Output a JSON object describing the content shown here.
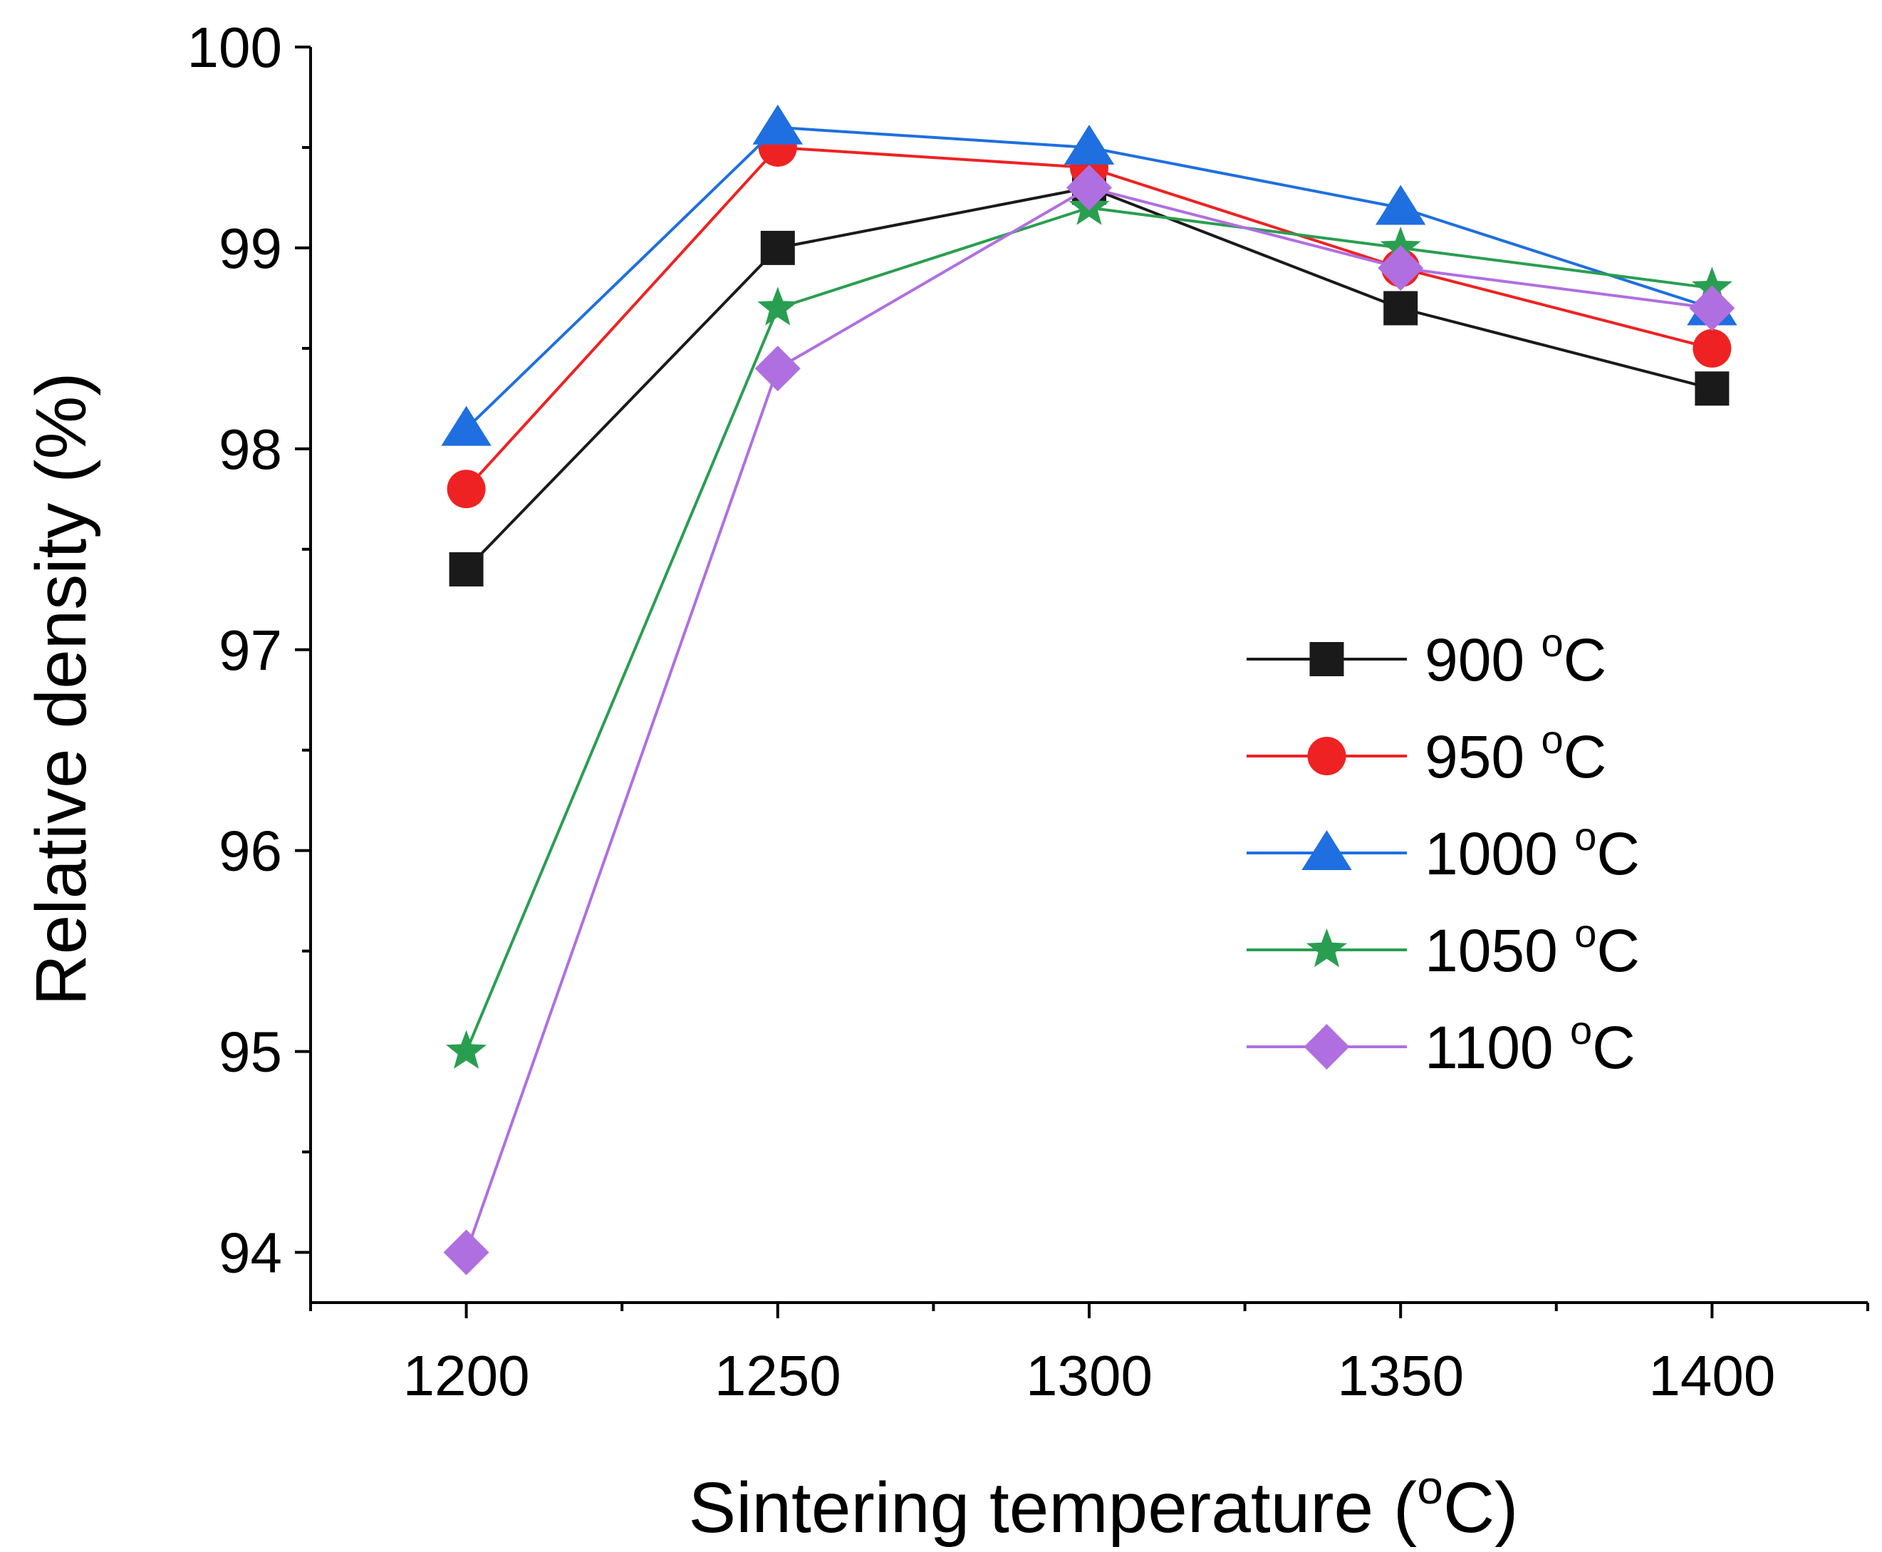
{
  "chart_data": {
    "type": "line",
    "title": "",
    "xlabel": "Sintering temperature (",
    "xlabel_unit": "C)",
    "ylabel": "Relative density (%)",
    "degree_symbol": "o",
    "x": [
      1200,
      1250,
      1300,
      1350,
      1400
    ],
    "xlim": [
      1175,
      1425
    ],
    "ylim": [
      93.75,
      100
    ],
    "x_ticks": [
      1200,
      1250,
      1300,
      1350,
      1400
    ],
    "x_tick_labels": [
      "1200",
      "1250",
      "1300",
      "1350",
      "1400"
    ],
    "y_ticks": [
      94,
      95,
      96,
      97,
      98,
      99,
      100
    ],
    "y_tick_labels": [
      "94",
      "95",
      "96",
      "97",
      "98",
      "99",
      "100"
    ],
    "grid": false,
    "legend_position": "right-middle",
    "series": [
      {
        "name": "900",
        "unit": "C",
        "marker": "square",
        "color": "#1a1a1a",
        "values": [
          97.4,
          99.0,
          99.3,
          98.7,
          98.3
        ]
      },
      {
        "name": "950",
        "unit": "C",
        "marker": "circle",
        "color": "#ee2222",
        "values": [
          97.8,
          99.5,
          99.4,
          98.9,
          98.5
        ]
      },
      {
        "name": "1000",
        "unit": "C",
        "marker": "triangle",
        "color": "#1f6fe0",
        "values": [
          98.1,
          99.6,
          99.5,
          99.2,
          98.7
        ]
      },
      {
        "name": "1050",
        "unit": "C",
        "marker": "star",
        "color": "#2a9e50",
        "values": [
          95.0,
          98.7,
          99.2,
          99.0,
          98.8
        ]
      },
      {
        "name": "1100",
        "unit": "C",
        "marker": "diamond",
        "color": "#b06fe0",
        "values": [
          94.0,
          98.4,
          99.3,
          98.9,
          98.7
        ]
      }
    ]
  }
}
